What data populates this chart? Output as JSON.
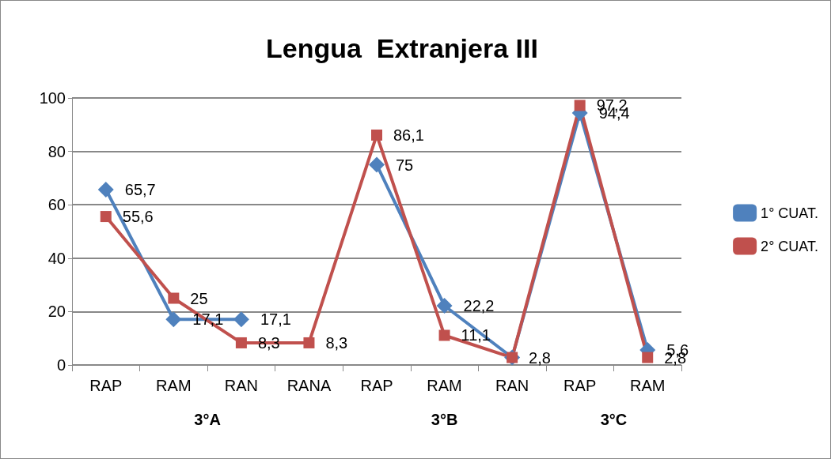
{
  "chart_data": {
    "type": "line",
    "title": "Lengua  Extranjera III",
    "categories": [
      "RAP",
      "RAM",
      "RAN",
      "RANA",
      "RAP",
      "RAM",
      "RAN",
      "RAP",
      "RAM"
    ],
    "series": [
      {
        "name": "1° CUAT.",
        "color": "#4f81bd",
        "marker": "diamond",
        "values": [
          65.7,
          17.1,
          17.1,
          null,
          75,
          22.2,
          2.8,
          94.4,
          5.6
        ],
        "value_labels": [
          "65,7",
          "17,1",
          "17,1",
          null,
          "75",
          "22,2",
          null,
          "94,4",
          "5,6"
        ]
      },
      {
        "name": "2° CUAT.",
        "color": "#c0504d",
        "marker": "square",
        "values": [
          55.6,
          25,
          8.3,
          8.3,
          86.1,
          11.1,
          2.8,
          97.2,
          2.8
        ],
        "value_labels": [
          "55,6",
          "25",
          "8,3",
          "8,3",
          "86,1",
          "11,1",
          "2,8",
          "97,2",
          "2,8"
        ]
      }
    ],
    "ylim": [
      0,
      100
    ],
    "yticks": [
      0,
      20,
      40,
      60,
      80,
      100
    ],
    "grid": "y",
    "legend": "right",
    "annotations": [
      "3°A",
      "3°B",
      "3°C"
    ]
  }
}
